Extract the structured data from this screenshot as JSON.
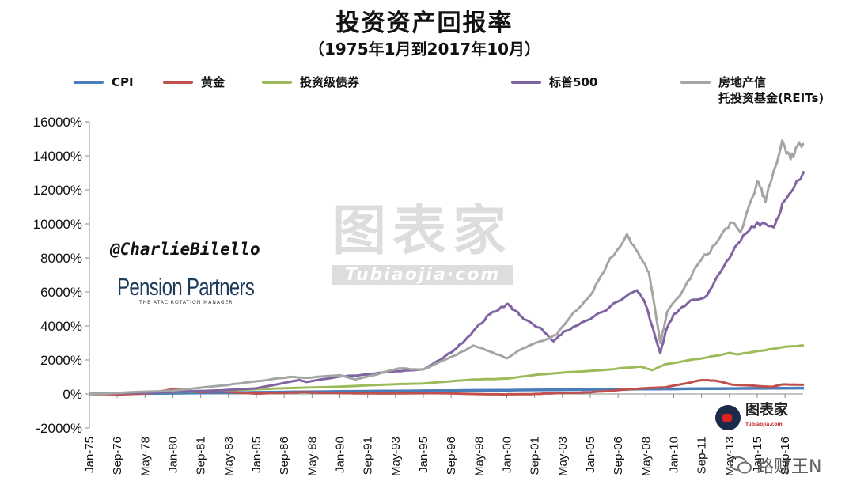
{
  "chart_data": {
    "type": "line",
    "title": "投资资产回报率",
    "subtitle": "（1975年1月到2017年10月）",
    "ylim": [
      -2000,
      16000
    ],
    "y_ticks": [
      "-2000%",
      "0%",
      "2000%",
      "4000%",
      "6000%",
      "8000%",
      "10000%",
      "12000%",
      "14000%",
      "16000%"
    ],
    "x_ticks": [
      "Jan-75",
      "Sep-76",
      "May-78",
      "Jan-80",
      "Sep-81",
      "May-83",
      "Jan-85",
      "Sep-86",
      "May-88",
      "Jan-90",
      "Sep-91",
      "May-93",
      "Jan-95",
      "Sep-96",
      "May-98",
      "Jan-00",
      "Sep-01",
      "May-03",
      "Jan-05",
      "Sep-06",
      "May-08",
      "Jan-10",
      "Sep-11",
      "May-13",
      "Jan-15",
      "Sep-16"
    ],
    "x_range": [
      "Jan-75",
      "Oct-17"
    ],
    "grid": false,
    "legend_position": "top",
    "series": [
      {
        "name": "CPI",
        "color": "#4a7ebb",
        "points": [
          [
            1975,
            0
          ],
          [
            1980,
            40
          ],
          [
            1985,
            100
          ],
          [
            1990,
            150
          ],
          [
            1995,
            190
          ],
          [
            2000,
            225
          ],
          [
            2005,
            260
          ],
          [
            2008,
            290
          ],
          [
            2010,
            300
          ],
          [
            2015,
            330
          ],
          [
            2017.8,
            345
          ]
        ]
      },
      {
        "name": "黄金",
        "color": "#c0504d",
        "points": [
          [
            1975,
            0
          ],
          [
            1976.7,
            -30
          ],
          [
            1978.5,
            40
          ],
          [
            1980.1,
            290
          ],
          [
            1981.5,
            120
          ],
          [
            1983,
            150
          ],
          [
            1985,
            20
          ],
          [
            1987.8,
            110
          ],
          [
            1990,
            50
          ],
          [
            1993,
            30
          ],
          [
            1996,
            40
          ],
          [
            1999.5,
            -20
          ],
          [
            2001.5,
            -10
          ],
          [
            2003,
            50
          ],
          [
            2005,
            100
          ],
          [
            2006.5,
            210
          ],
          [
            2008.2,
            340
          ],
          [
            2009.5,
            390
          ],
          [
            2011.7,
            820
          ],
          [
            2012.5,
            780
          ],
          [
            2013.5,
            550
          ],
          [
            2015.9,
            420
          ],
          [
            2016.5,
            560
          ],
          [
            2017.8,
            540
          ]
        ]
      },
      {
        "name": "投资级债券",
        "color": "#9bbb59",
        "points": [
          [
            1975,
            0
          ],
          [
            1980,
            110
          ],
          [
            1985,
            280
          ],
          [
            1990,
            430
          ],
          [
            1993,
            560
          ],
          [
            1995,
            620
          ],
          [
            1998,
            850
          ],
          [
            2000,
            900
          ],
          [
            2002,
            1150
          ],
          [
            2004,
            1300
          ],
          [
            2006,
            1430
          ],
          [
            2008,
            1620
          ],
          [
            2008.7,
            1400
          ],
          [
            2009.5,
            1750
          ],
          [
            2012,
            2150
          ],
          [
            2013.4,
            2420
          ],
          [
            2013.8,
            2320
          ],
          [
            2015,
            2520
          ],
          [
            2016.5,
            2750
          ],
          [
            2017.8,
            2850
          ]
        ]
      },
      {
        "name": "标普500",
        "color": "#8064a2",
        "points": [
          [
            1975,
            0
          ],
          [
            1980,
            120
          ],
          [
            1983,
            220
          ],
          [
            1985,
            330
          ],
          [
            1987.6,
            820
          ],
          [
            1988,
            700
          ],
          [
            1990,
            1030
          ],
          [
            1991,
            1080
          ],
          [
            1993,
            1300
          ],
          [
            1995,
            1450
          ],
          [
            1996,
            2000
          ],
          [
            1997,
            2700
          ],
          [
            1998,
            3700
          ],
          [
            1999,
            4700
          ],
          [
            2000,
            5300
          ],
          [
            2000.5,
            4900
          ],
          [
            2001,
            4400
          ],
          [
            2002,
            3900
          ],
          [
            2002.8,
            3100
          ],
          [
            2003.5,
            3700
          ],
          [
            2005,
            4400
          ],
          [
            2007.8,
            6100
          ],
          [
            2008.3,
            5300
          ],
          [
            2009.2,
            2400
          ],
          [
            2009.5,
            3600
          ],
          [
            2010,
            4700
          ],
          [
            2011,
            5500
          ],
          [
            2012,
            5800
          ],
          [
            2013,
            7500
          ],
          [
            2014,
            9000
          ],
          [
            2015,
            10100
          ],
          [
            2016,
            9800
          ],
          [
            2016.5,
            11200
          ],
          [
            2017.8,
            13100
          ]
        ]
      },
      {
        "name": "房地产信\n托投资基金(REITs)",
        "color": "#a5a5a5",
        "points": [
          [
            1975,
            0
          ],
          [
            1980,
            200
          ],
          [
            1983,
            500
          ],
          [
            1985,
            750
          ],
          [
            1987,
            1000
          ],
          [
            1988,
            950
          ],
          [
            1990,
            1100
          ],
          [
            1990.9,
            850
          ],
          [
            1992,
            1100
          ],
          [
            1993.5,
            1500
          ],
          [
            1995,
            1450
          ],
          [
            1997,
            2300
          ],
          [
            1998,
            2850
          ],
          [
            1999,
            2500
          ],
          [
            2000,
            2100
          ],
          [
            2001,
            2700
          ],
          [
            2002,
            3100
          ],
          [
            2003,
            3500
          ],
          [
            2004,
            4800
          ],
          [
            2005,
            5800
          ],
          [
            2006,
            7600
          ],
          [
            2007.2,
            9400
          ],
          [
            2008,
            8000
          ],
          [
            2008.5,
            7200
          ],
          [
            2009.2,
            3000
          ],
          [
            2009.6,
            4800
          ],
          [
            2010.5,
            6000
          ],
          [
            2011.5,
            7700
          ],
          [
            2012.5,
            8800
          ],
          [
            2013.4,
            10100
          ],
          [
            2014,
            9500
          ],
          [
            2015,
            12500
          ],
          [
            2015.5,
            11300
          ],
          [
            2016.5,
            14900
          ],
          [
            2017,
            13800
          ],
          [
            2017.5,
            14800
          ],
          [
            2017.8,
            14700
          ]
        ]
      }
    ]
  },
  "annotations": {
    "handle": "@CharlieBilello",
    "brand_name": "Pension Partners",
    "brand_tagline": "THE ATAC ROTATION MANAGER",
    "watermark_big": "图表家",
    "watermark_small": "Tubiaojia·com",
    "logo_text": "图表家",
    "logo_url": "Tubiaojia.com",
    "wechat_label": "路财王N"
  }
}
